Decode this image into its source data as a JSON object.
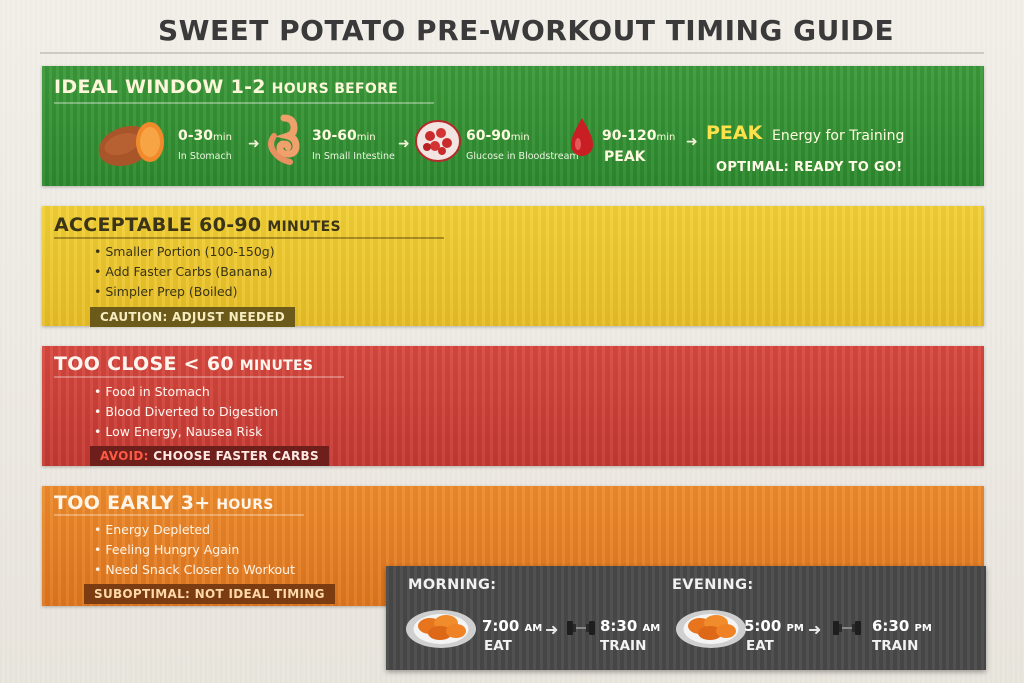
{
  "title": "SWEET POTATO PRE-WORKOUT TIMING GUIDE",
  "colors": {
    "green": "#2d8a2e",
    "yellow": "#e7bd24",
    "red": "#c53a33",
    "orange": "#e0761e",
    "peak": "#ffe14a",
    "schedule": "#4a4a4a"
  },
  "ideal": {
    "title_big": "IDEAL WINDOW  1-2",
    "title_small": "HOURS BEFORE",
    "steps": [
      {
        "range": "0-30",
        "unit": "min",
        "label": "In Stomach",
        "icon": "sweet-potato-icon"
      },
      {
        "range": "30-60",
        "unit": "min",
        "label": "In Small Intestine",
        "icon": "intestine-icon"
      },
      {
        "range": "60-90",
        "unit": "min",
        "label": "Glucose in Bloodstream",
        "icon": "blood-cells-icon"
      },
      {
        "range": "90-120",
        "unit": "min",
        "label": "PEAK",
        "icon": "blood-drop-icon"
      }
    ],
    "peak_word": "PEAK",
    "peak_rest": "Energy for Training",
    "optimal": "OPTIMAL: READY TO GO!"
  },
  "acceptable": {
    "title_big": "ACCEPTABLE 60-90",
    "title_small": "MINUTES",
    "bullets": [
      "Smaller Portion (100-150g)",
      "Add Faster Carbs (Banana)",
      "Simpler Prep (Boiled)"
    ],
    "tag": "CAUTION: ADJUST NEEDED"
  },
  "too_close": {
    "title_big": "TOO CLOSE < 60",
    "title_small": "MINUTES",
    "bullets": [
      "Food in Stomach",
      "Blood Diverted to Digestion",
      "Low Energy, Nausea Risk"
    ],
    "tag_avoid": "AVOID:",
    "tag_rest": "CHOOSE FASTER CARBS"
  },
  "too_early": {
    "title_big": "TOO EARLY  3+",
    "title_small": "HOURS",
    "bullets": [
      "Energy Depleted",
      "Feeling Hungry Again",
      "Need Snack Closer to Workout"
    ],
    "tag": "SUBOPTIMAL: NOT IDEAL TIMING"
  },
  "schedule": {
    "morning": {
      "label": "MORNING:",
      "eat_time": "7:00",
      "eat_ampm": "AM",
      "eat": "EAT",
      "train_time": "8:30",
      "train_ampm": "AM",
      "train": "TRAIN"
    },
    "evening": {
      "label": "EVENING:",
      "eat_time": "5:00",
      "eat_ampm": "PM",
      "eat": "EAT",
      "train_time": "6:30",
      "train_ampm": "PM",
      "train": "TRAIN"
    }
  }
}
